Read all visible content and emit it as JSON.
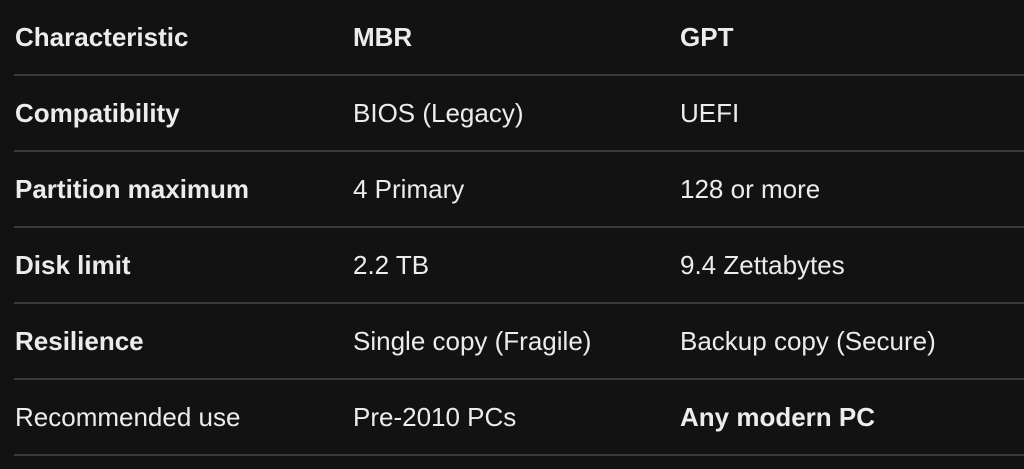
{
  "table": {
    "headers": [
      "Characteristic",
      "MBR",
      "GPT"
    ],
    "rows": [
      [
        "Compatibility",
        "BIOS (Legacy)",
        "UEFI"
      ],
      [
        "Partition maximum",
        "4 Primary",
        "128 or more"
      ],
      [
        "Disk limit",
        "2.2 TB",
        "9.4 Zettabytes"
      ],
      [
        "Resilience",
        "Single copy (Fragile)",
        "Backup copy (Secure)"
      ],
      [
        "Recommended use",
        "Pre-2010 PCs",
        "Any modern PC"
      ]
    ]
  }
}
